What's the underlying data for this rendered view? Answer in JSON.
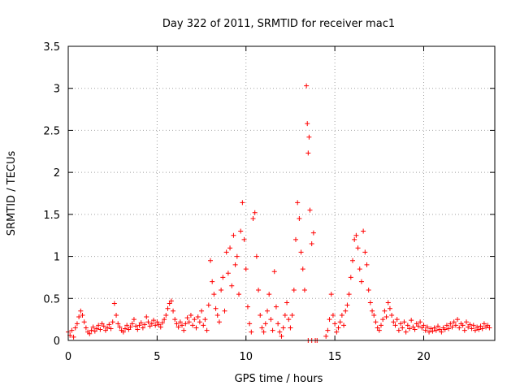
{
  "chart_data": {
    "type": "scatter",
    "title": "Day 322 of 2011, SRMTID for receiver mac1",
    "xlabel": "GPS time / hours",
    "ylabel": "SRMTID / TECUs",
    "xlim": [
      0,
      24
    ],
    "ylim": [
      0,
      3.5
    ],
    "xticks": [
      0,
      5,
      10,
      15,
      20
    ],
    "yticks": [
      0,
      0.5,
      1,
      1.5,
      2,
      2.5,
      3,
      3.5
    ],
    "xtick_labels": [
      "0",
      "5",
      "10",
      "15",
      "20"
    ],
    "ytick_labels": [
      "0",
      "0.5",
      "1",
      "1.5",
      "2",
      "2.5",
      "3",
      "3.5"
    ],
    "grid": true,
    "marker": "+",
    "series": [
      {
        "name": "SRMTID",
        "color": "#ff0000",
        "points": [
          [
            0.0,
            0.1
          ],
          [
            0.1,
            0.06
          ],
          [
            0.2,
            0.12
          ],
          [
            0.3,
            0.04
          ],
          [
            0.4,
            0.15
          ],
          [
            0.5,
            0.2
          ],
          [
            0.6,
            0.28
          ],
          [
            0.7,
            0.35
          ],
          [
            0.8,
            0.3
          ],
          [
            0.9,
            0.22
          ],
          [
            1.0,
            0.15
          ],
          [
            1.1,
            0.1
          ],
          [
            1.2,
            0.08
          ],
          [
            1.3,
            0.12
          ],
          [
            1.4,
            0.16
          ],
          [
            1.5,
            0.11
          ],
          [
            1.6,
            0.14
          ],
          [
            1.7,
            0.18
          ],
          [
            1.8,
            0.13
          ],
          [
            1.9,
            0.2
          ],
          [
            2.0,
            0.17
          ],
          [
            2.1,
            0.12
          ],
          [
            2.2,
            0.15
          ],
          [
            2.3,
            0.19
          ],
          [
            2.4,
            0.14
          ],
          [
            2.5,
            0.22
          ],
          [
            2.6,
            0.44
          ],
          [
            2.7,
            0.3
          ],
          [
            2.8,
            0.2
          ],
          [
            2.9,
            0.16
          ],
          [
            3.0,
            0.12
          ],
          [
            3.1,
            0.1
          ],
          [
            3.2,
            0.14
          ],
          [
            3.3,
            0.18
          ],
          [
            3.4,
            0.13
          ],
          [
            3.5,
            0.16
          ],
          [
            3.6,
            0.2
          ],
          [
            3.7,
            0.25
          ],
          [
            3.8,
            0.17
          ],
          [
            3.9,
            0.13
          ],
          [
            4.0,
            0.18
          ],
          [
            4.1,
            0.21
          ],
          [
            4.2,
            0.15
          ],
          [
            4.3,
            0.19
          ],
          [
            4.4,
            0.28
          ],
          [
            4.5,
            0.22
          ],
          [
            4.6,
            0.17
          ],
          [
            4.7,
            0.2
          ],
          [
            4.8,
            0.24
          ],
          [
            4.9,
            0.18
          ],
          [
            5.0,
            0.22
          ],
          [
            5.1,
            0.19
          ],
          [
            5.2,
            0.16
          ],
          [
            5.3,
            0.21
          ],
          [
            5.4,
            0.25
          ],
          [
            5.5,
            0.3
          ],
          [
            5.6,
            0.38
          ],
          [
            5.7,
            0.44
          ],
          [
            5.8,
            0.47
          ],
          [
            5.9,
            0.35
          ],
          [
            6.0,
            0.25
          ],
          [
            6.1,
            0.2
          ],
          [
            6.2,
            0.16
          ],
          [
            6.3,
            0.22
          ],
          [
            6.4,
            0.18
          ],
          [
            6.5,
            0.12
          ],
          [
            6.6,
            0.2
          ],
          [
            6.7,
            0.27
          ],
          [
            6.8,
            0.22
          ],
          [
            6.9,
            0.3
          ],
          [
            7.0,
            0.18
          ],
          [
            7.1,
            0.25
          ],
          [
            7.2,
            0.15
          ],
          [
            7.3,
            0.28
          ],
          [
            7.4,
            0.22
          ],
          [
            7.5,
            0.35
          ],
          [
            7.6,
            0.18
          ],
          [
            7.7,
            0.25
          ],
          [
            7.8,
            0.12
          ],
          [
            7.9,
            0.42
          ],
          [
            8.0,
            0.95
          ],
          [
            8.1,
            0.7
          ],
          [
            8.2,
            0.55
          ],
          [
            8.3,
            0.38
          ],
          [
            8.4,
            0.3
          ],
          [
            8.5,
            0.22
          ],
          [
            8.6,
            0.6
          ],
          [
            8.7,
            0.75
          ],
          [
            8.8,
            0.35
          ],
          [
            8.9,
            1.05
          ],
          [
            9.0,
            0.8
          ],
          [
            9.1,
            1.1
          ],
          [
            9.2,
            0.65
          ],
          [
            9.3,
            1.25
          ],
          [
            9.4,
            0.9
          ],
          [
            9.5,
            1.0
          ],
          [
            9.6,
            0.55
          ],
          [
            9.7,
            1.3
          ],
          [
            9.8,
            1.64
          ],
          [
            9.9,
            1.2
          ],
          [
            10.0,
            0.85
          ],
          [
            10.1,
            0.4
          ],
          [
            10.2,
            0.2
          ],
          [
            10.3,
            0.1
          ],
          [
            10.4,
            1.45
          ],
          [
            10.5,
            1.52
          ],
          [
            10.6,
            1.0
          ],
          [
            10.7,
            0.6
          ],
          [
            10.8,
            0.3
          ],
          [
            10.9,
            0.15
          ],
          [
            11.0,
            0.1
          ],
          [
            11.1,
            0.2
          ],
          [
            11.2,
            0.35
          ],
          [
            11.3,
            0.55
          ],
          [
            11.4,
            0.25
          ],
          [
            11.5,
            0.12
          ],
          [
            11.6,
            0.82
          ],
          [
            11.7,
            0.4
          ],
          [
            11.8,
            0.2
          ],
          [
            11.9,
            0.1
          ],
          [
            12.0,
            0.05
          ],
          [
            12.1,
            0.15
          ],
          [
            12.2,
            0.3
          ],
          [
            12.3,
            0.45
          ],
          [
            12.4,
            0.25
          ],
          [
            12.5,
            0.15
          ],
          [
            12.6,
            0.3
          ],
          [
            12.7,
            0.6
          ],
          [
            12.8,
            1.2
          ],
          [
            12.9,
            1.64
          ],
          [
            13.0,
            1.45
          ],
          [
            13.1,
            1.05
          ],
          [
            13.2,
            0.85
          ],
          [
            13.3,
            0.6
          ],
          [
            13.4,
            3.03
          ],
          [
            13.45,
            2.58
          ],
          [
            13.5,
            2.23
          ],
          [
            13.55,
            2.42
          ],
          [
            13.6,
            1.55
          ],
          [
            13.7,
            1.15
          ],
          [
            13.8,
            1.28
          ],
          [
            13.5,
            0.0
          ],
          [
            13.7,
            0.0
          ],
          [
            13.9,
            0.0
          ],
          [
            14.0,
            0.0
          ],
          [
            14.5,
            0.05
          ],
          [
            14.6,
            0.12
          ],
          [
            14.7,
            0.25
          ],
          [
            14.8,
            0.55
          ],
          [
            14.9,
            0.3
          ],
          [
            15.0,
            0.2
          ],
          [
            15.1,
            0.1
          ],
          [
            15.2,
            0.15
          ],
          [
            15.3,
            0.22
          ],
          [
            15.4,
            0.3
          ],
          [
            15.5,
            0.18
          ],
          [
            15.6,
            0.35
          ],
          [
            15.7,
            0.42
          ],
          [
            15.8,
            0.55
          ],
          [
            15.9,
            0.75
          ],
          [
            16.0,
            0.95
          ],
          [
            16.1,
            1.2
          ],
          [
            16.2,
            1.25
          ],
          [
            16.3,
            1.1
          ],
          [
            16.4,
            0.85
          ],
          [
            16.5,
            0.7
          ],
          [
            16.6,
            1.3
          ],
          [
            16.7,
            1.05
          ],
          [
            16.8,
            0.9
          ],
          [
            16.9,
            0.6
          ],
          [
            17.0,
            0.45
          ],
          [
            17.1,
            0.35
          ],
          [
            17.2,
            0.3
          ],
          [
            17.3,
            0.22
          ],
          [
            17.4,
            0.15
          ],
          [
            17.5,
            0.12
          ],
          [
            17.6,
            0.18
          ],
          [
            17.7,
            0.25
          ],
          [
            17.8,
            0.35
          ],
          [
            17.9,
            0.28
          ],
          [
            18.0,
            0.45
          ],
          [
            18.1,
            0.38
          ],
          [
            18.2,
            0.3
          ],
          [
            18.3,
            0.22
          ],
          [
            18.4,
            0.18
          ],
          [
            18.5,
            0.25
          ],
          [
            18.6,
            0.12
          ],
          [
            18.7,
            0.2
          ],
          [
            18.8,
            0.15
          ],
          [
            18.9,
            0.22
          ],
          [
            19.0,
            0.1
          ],
          [
            19.1,
            0.18
          ],
          [
            19.2,
            0.14
          ],
          [
            19.3,
            0.24
          ],
          [
            19.4,
            0.16
          ],
          [
            19.5,
            0.13
          ],
          [
            19.6,
            0.2
          ],
          [
            19.7,
            0.17
          ],
          [
            19.8,
            0.22
          ],
          [
            19.9,
            0.15
          ],
          [
            20.0,
            0.18
          ],
          [
            20.1,
            0.12
          ],
          [
            20.2,
            0.16
          ],
          [
            20.3,
            0.1
          ],
          [
            20.4,
            0.14
          ],
          [
            20.5,
            0.11
          ],
          [
            20.6,
            0.15
          ],
          [
            20.7,
            0.12
          ],
          [
            20.8,
            0.17
          ],
          [
            20.9,
            0.13
          ],
          [
            21.0,
            0.1
          ],
          [
            21.1,
            0.15
          ],
          [
            21.2,
            0.13
          ],
          [
            21.3,
            0.18
          ],
          [
            21.4,
            0.14
          ],
          [
            21.5,
            0.2
          ],
          [
            21.6,
            0.16
          ],
          [
            21.7,
            0.22
          ],
          [
            21.8,
            0.18
          ],
          [
            21.9,
            0.25
          ],
          [
            22.0,
            0.15
          ],
          [
            22.1,
            0.2
          ],
          [
            22.2,
            0.18
          ],
          [
            22.3,
            0.12
          ],
          [
            22.4,
            0.22
          ],
          [
            22.5,
            0.16
          ],
          [
            22.6,
            0.19
          ],
          [
            22.7,
            0.14
          ],
          [
            22.8,
            0.18
          ],
          [
            22.9,
            0.12
          ],
          [
            23.0,
            0.16
          ],
          [
            23.1,
            0.13
          ],
          [
            23.2,
            0.17
          ],
          [
            23.3,
            0.14
          ],
          [
            23.4,
            0.2
          ],
          [
            23.5,
            0.16
          ],
          [
            23.6,
            0.18
          ],
          [
            23.7,
            0.15
          ]
        ]
      }
    ]
  }
}
